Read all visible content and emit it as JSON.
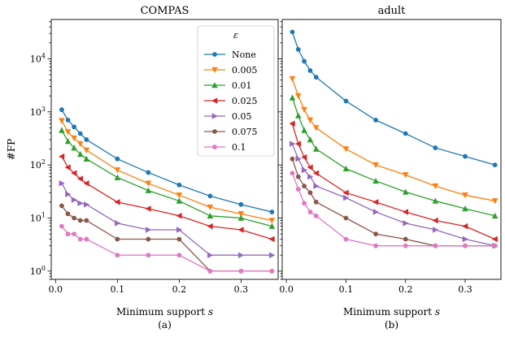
{
  "chart_data": [
    {
      "type": "line",
      "title": "COMPAS",
      "xlabel": "Minimum support s",
      "ylabel": "#FP",
      "caption": "(a)",
      "yscale": "log",
      "xlim": [
        -0.007,
        0.36
      ],
      "ylim": [
        0.7,
        55000
      ],
      "xticks": [
        0,
        0.1,
        0.2,
        0.3
      ],
      "xtick_labels": [
        "0.0",
        "0.1",
        "0.2",
        "0.3"
      ],
      "yticks": [
        1,
        10,
        100,
        1000,
        10000
      ],
      "ytick_labels": [
        "10⁰",
        "10¹",
        "10²",
        "10³",
        "10⁴"
      ],
      "x": [
        0.01,
        0.02,
        0.03,
        0.04,
        0.05,
        0.1,
        0.15,
        0.2,
        0.25,
        0.3,
        0.35
      ],
      "legend": {
        "title": "ε",
        "placement": "top-right"
      },
      "series": [
        {
          "name": "None",
          "color": "#1f77b4",
          "marker": "circle",
          "values": [
            1100,
            700,
            520,
            390,
            300,
            130,
            72,
            42,
            26,
            18,
            13
          ]
        },
        {
          "name": "0.005",
          "color": "#ff7f0e",
          "marker": "triangle-down",
          "values": [
            680,
            420,
            320,
            250,
            190,
            80,
            45,
            27,
            16,
            12,
            9
          ]
        },
        {
          "name": "0.01",
          "color": "#2ca02c",
          "marker": "triangle-up",
          "values": [
            450,
            280,
            210,
            160,
            130,
            58,
            33,
            21,
            11,
            10,
            7
          ]
        },
        {
          "name": "0.025",
          "color": "#d62728",
          "marker": "triangle-left",
          "values": [
            145,
            90,
            70,
            55,
            45,
            20,
            15,
            11,
            7,
            6,
            4
          ]
        },
        {
          "name": "0.05",
          "color": "#9467bd",
          "marker": "triangle-right",
          "values": [
            45,
            28,
            22,
            19,
            18,
            8,
            6,
            6,
            2,
            2,
            2
          ]
        },
        {
          "name": "0.075",
          "color": "#8c564b",
          "marker": "circle",
          "values": [
            17,
            12,
            10,
            9,
            9,
            4,
            4,
            4,
            1,
            1,
            1
          ]
        },
        {
          "name": "0.1",
          "color": "#e377c2",
          "marker": "circle",
          "values": [
            7,
            5,
            5,
            4,
            4,
            2,
            2,
            2,
            1,
            1,
            1
          ]
        }
      ]
    },
    {
      "type": "line",
      "title": "adult",
      "xlabel": "Minimum support s",
      "ylabel": "",
      "caption": "(b)",
      "yscale": "log",
      "xlim": [
        -0.007,
        0.36
      ],
      "ylim": [
        0.7,
        55000
      ],
      "xticks": [
        0,
        0.1,
        0.2,
        0.3
      ],
      "xtick_labels": [
        "0.0",
        "0.1",
        "0.2",
        "0.3"
      ],
      "x": [
        0.01,
        0.02,
        0.03,
        0.04,
        0.05,
        0.1,
        0.15,
        0.2,
        0.25,
        0.3,
        0.35
      ],
      "series": [
        {
          "name": "None",
          "color": "#1f77b4",
          "marker": "circle",
          "values": [
            32000,
            15000,
            9000,
            6000,
            4500,
            1600,
            700,
            390,
            210,
            145,
            100
          ]
        },
        {
          "name": "0.005",
          "color": "#ff7f0e",
          "marker": "triangle-down",
          "values": [
            4200,
            2000,
            1100,
            700,
            500,
            200,
            100,
            65,
            40,
            27,
            21
          ]
        },
        {
          "name": "0.01",
          "color": "#2ca02c",
          "marker": "triangle-up",
          "values": [
            1850,
            850,
            450,
            300,
            200,
            85,
            50,
            31,
            21,
            15,
            11
          ]
        },
        {
          "name": "0.025",
          "color": "#d62728",
          "marker": "triangle-left",
          "values": [
            600,
            250,
            140,
            90,
            70,
            30,
            20,
            13,
            9,
            7,
            4
          ]
        },
        {
          "name": "0.05",
          "color": "#9467bd",
          "marker": "triangle-right",
          "values": [
            250,
            130,
            80,
            60,
            40,
            24,
            13,
            8,
            6,
            4,
            3
          ]
        },
        {
          "name": "0.075",
          "color": "#8c564b",
          "marker": "circle",
          "values": [
            130,
            60,
            40,
            30,
            20,
            10,
            5,
            4,
            3,
            3,
            3
          ]
        },
        {
          "name": "0.1",
          "color": "#e377c2",
          "marker": "circle",
          "values": [
            70,
            35,
            19,
            13,
            11,
            4,
            3,
            3,
            3,
            3,
            3
          ]
        }
      ]
    }
  ]
}
